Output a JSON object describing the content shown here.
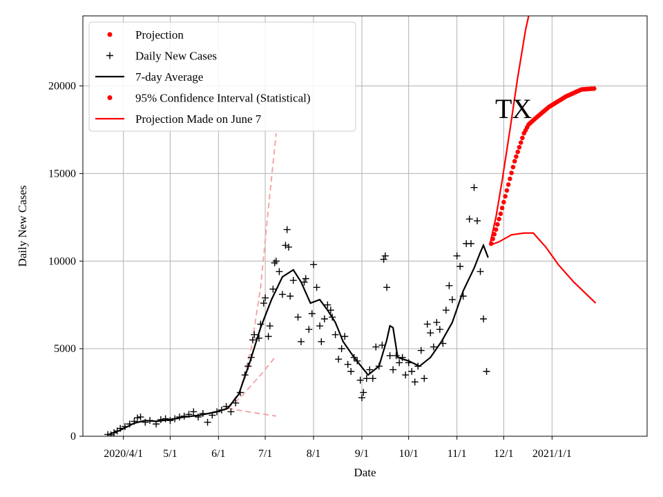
{
  "chart_data": {
    "type": "line",
    "title": "",
    "annotation": "TX",
    "xlabel": "Date",
    "ylabel": "Daily New Cases",
    "ylim": [
      0,
      24000
    ],
    "x_range": [
      "2020-03-06",
      "2021-03-03"
    ],
    "grid": true,
    "legend_position": "top-left",
    "x_ticks": [
      {
        "date": "2020-04-01",
        "label": "2020/4/1"
      },
      {
        "date": "2020-05-01",
        "label": "5/1"
      },
      {
        "date": "2020-06-01",
        "label": "6/1"
      },
      {
        "date": "2020-07-01",
        "label": "7/1"
      },
      {
        "date": "2020-08-01",
        "label": "8/1"
      },
      {
        "date": "2020-09-01",
        "label": "9/1"
      },
      {
        "date": "2020-10-01",
        "label": "10/1"
      },
      {
        "date": "2020-11-01",
        "label": "11/1"
      },
      {
        "date": "2020-12-01",
        "label": "12/1"
      },
      {
        "date": "2021-01-01",
        "label": "2021/1/1"
      }
    ],
    "y_ticks": [
      0,
      5000,
      10000,
      15000,
      20000
    ],
    "legend": [
      {
        "label": "Projection",
        "marker": "dot",
        "color": "#ff0000"
      },
      {
        "label": "Daily New Cases",
        "marker": "plus",
        "color": "#000000"
      },
      {
        "label": "7-day Average",
        "marker": "line",
        "color": "#000000"
      },
      {
        "label": "95% Confidence Interval (Statistical)",
        "marker": "dot",
        "color": "#ff0000"
      },
      {
        "label": "Projection Made on June 7",
        "marker": "line",
        "color": "#ff0000"
      }
    ],
    "series": [
      {
        "name": "Daily New Cases",
        "style": "plus",
        "color": "#000000",
        "points": [
          [
            "2020-03-22",
            100
          ],
          [
            "2020-03-24",
            80
          ],
          [
            "2020-03-26",
            200
          ],
          [
            "2020-03-28",
            300
          ],
          [
            "2020-03-30",
            450
          ],
          [
            "2020-04-02",
            550
          ],
          [
            "2020-04-05",
            700
          ],
          [
            "2020-04-08",
            850
          ],
          [
            "2020-04-10",
            1050
          ],
          [
            "2020-04-12",
            1100
          ],
          [
            "2020-04-15",
            800
          ],
          [
            "2020-04-18",
            900
          ],
          [
            "2020-04-22",
            700
          ],
          [
            "2020-04-25",
            950
          ],
          [
            "2020-04-28",
            1000
          ],
          [
            "2020-05-01",
            900
          ],
          [
            "2020-05-04",
            1000
          ],
          [
            "2020-05-07",
            1100
          ],
          [
            "2020-05-10",
            1150
          ],
          [
            "2020-05-13",
            1250
          ],
          [
            "2020-05-16",
            1400
          ],
          [
            "2020-05-19",
            1100
          ],
          [
            "2020-05-22",
            1300
          ],
          [
            "2020-05-25",
            800
          ],
          [
            "2020-05-28",
            1200
          ],
          [
            "2020-05-31",
            1400
          ],
          [
            "2020-06-03",
            1500
          ],
          [
            "2020-06-06",
            1700
          ],
          [
            "2020-06-09",
            1400
          ],
          [
            "2020-06-12",
            1900
          ],
          [
            "2020-06-15",
            2500
          ],
          [
            "2020-06-18",
            3500
          ],
          [
            "2020-06-20",
            4000
          ],
          [
            "2020-06-22",
            4500
          ],
          [
            "2020-06-23",
            5500
          ],
          [
            "2020-06-24",
            5800
          ],
          [
            "2020-06-27",
            5600
          ],
          [
            "2020-06-28",
            6400
          ],
          [
            "2020-06-30",
            7600
          ],
          [
            "2020-07-01",
            7900
          ],
          [
            "2020-07-03",
            5700
          ],
          [
            "2020-07-04",
            6300
          ],
          [
            "2020-07-06",
            8400
          ],
          [
            "2020-07-07",
            9900
          ],
          [
            "2020-07-08",
            10000
          ],
          [
            "2020-07-10",
            9400
          ],
          [
            "2020-07-12",
            8100
          ],
          [
            "2020-07-14",
            10900
          ],
          [
            "2020-07-15",
            11800
          ],
          [
            "2020-07-16",
            10800
          ],
          [
            "2020-07-17",
            8000
          ],
          [
            "2020-07-19",
            8900
          ],
          [
            "2020-07-22",
            6800
          ],
          [
            "2020-07-24",
            5400
          ],
          [
            "2020-07-26",
            8800
          ],
          [
            "2020-07-27",
            9000
          ],
          [
            "2020-07-29",
            6100
          ],
          [
            "2020-07-31",
            7000
          ],
          [
            "2020-08-01",
            9800
          ],
          [
            "2020-08-03",
            8500
          ],
          [
            "2020-08-05",
            6300
          ],
          [
            "2020-08-06",
            5400
          ],
          [
            "2020-08-08",
            6700
          ],
          [
            "2020-08-10",
            7500
          ],
          [
            "2020-08-12",
            7200
          ],
          [
            "2020-08-13",
            6800
          ],
          [
            "2020-08-15",
            5800
          ],
          [
            "2020-08-17",
            4400
          ],
          [
            "2020-08-19",
            5000
          ],
          [
            "2020-08-21",
            5700
          ],
          [
            "2020-08-23",
            4100
          ],
          [
            "2020-08-25",
            3700
          ],
          [
            "2020-08-27",
            4500
          ],
          [
            "2020-08-29",
            4300
          ],
          [
            "2020-08-31",
            3200
          ],
          [
            "2020-09-01",
            2200
          ],
          [
            "2020-09-02",
            2500
          ],
          [
            "2020-09-04",
            3300
          ],
          [
            "2020-09-06",
            3800
          ],
          [
            "2020-09-08",
            3300
          ],
          [
            "2020-09-10",
            5100
          ],
          [
            "2020-09-12",
            4000
          ],
          [
            "2020-09-14",
            5200
          ],
          [
            "2020-09-15",
            10100
          ],
          [
            "2020-09-16",
            10300
          ],
          [
            "2020-09-17",
            8500
          ],
          [
            "2020-09-19",
            4600
          ],
          [
            "2020-09-21",
            3800
          ],
          [
            "2020-09-23",
            4600
          ],
          [
            "2020-09-25",
            4200
          ],
          [
            "2020-09-27",
            4500
          ],
          [
            "2020-09-29",
            3500
          ],
          [
            "2020-10-01",
            4200
          ],
          [
            "2020-10-03",
            3700
          ],
          [
            "2020-10-05",
            3100
          ],
          [
            "2020-10-07",
            4000
          ],
          [
            "2020-10-09",
            4900
          ],
          [
            "2020-10-11",
            3300
          ],
          [
            "2020-10-13",
            6400
          ],
          [
            "2020-10-15",
            5900
          ],
          [
            "2020-10-17",
            5100
          ],
          [
            "2020-10-19",
            6500
          ],
          [
            "2020-10-21",
            6100
          ],
          [
            "2020-10-23",
            5300
          ],
          [
            "2020-10-25",
            7200
          ],
          [
            "2020-10-27",
            8600
          ],
          [
            "2020-10-29",
            7800
          ],
          [
            "2020-11-01",
            10300
          ],
          [
            "2020-11-03",
            9700
          ],
          [
            "2020-11-05",
            8000
          ],
          [
            "2020-11-07",
            11000
          ],
          [
            "2020-11-09",
            12400
          ],
          [
            "2020-11-10",
            11000
          ],
          [
            "2020-11-12",
            14200
          ],
          [
            "2020-11-14",
            12300
          ],
          [
            "2020-11-16",
            9400
          ],
          [
            "2020-11-18",
            6700
          ],
          [
            "2020-11-20",
            3700
          ]
        ]
      },
      {
        "name": "7-day Average",
        "style": "line",
        "color": "#000000",
        "points": [
          [
            "2020-03-22",
            80
          ],
          [
            "2020-03-30",
            350
          ],
          [
            "2020-04-08",
            750
          ],
          [
            "2020-04-15",
            900
          ],
          [
            "2020-04-22",
            850
          ],
          [
            "2020-05-01",
            950
          ],
          [
            "2020-05-10",
            1100
          ],
          [
            "2020-05-20",
            1200
          ],
          [
            "2020-05-31",
            1400
          ],
          [
            "2020-06-07",
            1600
          ],
          [
            "2020-06-14",
            2400
          ],
          [
            "2020-06-21",
            4200
          ],
          [
            "2020-06-28",
            6200
          ],
          [
            "2020-07-05",
            7800
          ],
          [
            "2020-07-12",
            9100
          ],
          [
            "2020-07-19",
            9500
          ],
          [
            "2020-07-24",
            8800
          ],
          [
            "2020-07-30",
            7600
          ],
          [
            "2020-08-05",
            7800
          ],
          [
            "2020-08-10",
            7200
          ],
          [
            "2020-08-15",
            6500
          ],
          [
            "2020-08-20",
            5400
          ],
          [
            "2020-08-27",
            4500
          ],
          [
            "2020-09-05",
            3500
          ],
          [
            "2020-09-12",
            4000
          ],
          [
            "2020-09-17",
            5500
          ],
          [
            "2020-09-19",
            6300
          ],
          [
            "2020-09-21",
            6200
          ],
          [
            "2020-09-24",
            4500
          ],
          [
            "2020-10-01",
            4300
          ],
          [
            "2020-10-08",
            4000
          ],
          [
            "2020-10-15",
            4500
          ],
          [
            "2020-10-22",
            5400
          ],
          [
            "2020-10-29",
            6500
          ],
          [
            "2020-11-05",
            8300
          ],
          [
            "2020-11-12",
            9600
          ],
          [
            "2020-11-16",
            10500
          ],
          [
            "2020-11-18",
            10900
          ],
          [
            "2020-11-21",
            10200
          ]
        ]
      },
      {
        "name": "Projection",
        "style": "dots",
        "color": "#ff0000",
        "points": [
          [
            "2020-11-23",
            11000
          ],
          [
            "2020-11-26",
            11800
          ],
          [
            "2020-11-29",
            12700
          ],
          [
            "2020-12-02",
            13700
          ],
          [
            "2020-12-05",
            14700
          ],
          [
            "2020-12-08",
            15700
          ],
          [
            "2020-12-11",
            16500
          ],
          [
            "2020-12-14",
            17300
          ],
          [
            "2020-12-17",
            17800
          ],
          [
            "2020-12-22",
            18200
          ],
          [
            "2020-12-30",
            18800
          ],
          [
            "2021-01-10",
            19400
          ],
          [
            "2021-01-20",
            19800
          ],
          [
            "2021-01-28",
            19850
          ]
        ]
      },
      {
        "name": "95% Confidence Interval (Statistical)",
        "style": "line",
        "color": "#ff0000",
        "points": [
          [
            "2020-11-22",
            10900
          ],
          [
            "2020-11-26",
            12500
          ],
          [
            "2020-11-30",
            14600
          ],
          [
            "2020-12-05",
            17500
          ],
          [
            "2020-12-10",
            20500
          ],
          [
            "2020-12-15",
            23200
          ],
          [
            "2020-12-17",
            24000
          ]
        ]
      },
      {
        "name": "Projection Made on June 7",
        "style": "line",
        "color": "#ff0000",
        "points": [
          [
            "2020-11-22",
            10900
          ],
          [
            "2020-11-28",
            11100
          ],
          [
            "2020-12-06",
            11500
          ],
          [
            "2020-12-14",
            11600
          ],
          [
            "2020-12-20",
            11600
          ],
          [
            "2020-12-28",
            10800
          ],
          [
            "2021-01-05",
            9800
          ],
          [
            "2021-01-15",
            8800
          ],
          [
            "2021-01-29",
            7600
          ]
        ]
      },
      {
        "name": "June Upper Bound",
        "style": "dashed",
        "color": "#f4a6a6",
        "points": [
          [
            "2020-06-07",
            1600
          ],
          [
            "2020-06-15",
            2600
          ],
          [
            "2020-06-22",
            5000
          ],
          [
            "2020-06-28",
            8500
          ],
          [
            "2020-07-03",
            13000
          ],
          [
            "2020-07-08",
            17300
          ]
        ]
      },
      {
        "name": "June Projection",
        "style": "dashed",
        "color": "#f4a6a6",
        "points": [
          [
            "2020-06-07",
            1600
          ],
          [
            "2020-06-15",
            2200
          ],
          [
            "2020-06-22",
            2900
          ],
          [
            "2020-06-30",
            3700
          ],
          [
            "2020-07-08",
            4600
          ]
        ]
      },
      {
        "name": "June Lower Bound",
        "style": "dashed",
        "color": "#f4a6a6",
        "points": [
          [
            "2020-06-07",
            1600
          ],
          [
            "2020-06-20",
            1400
          ],
          [
            "2020-07-08",
            1150
          ]
        ]
      }
    ]
  }
}
